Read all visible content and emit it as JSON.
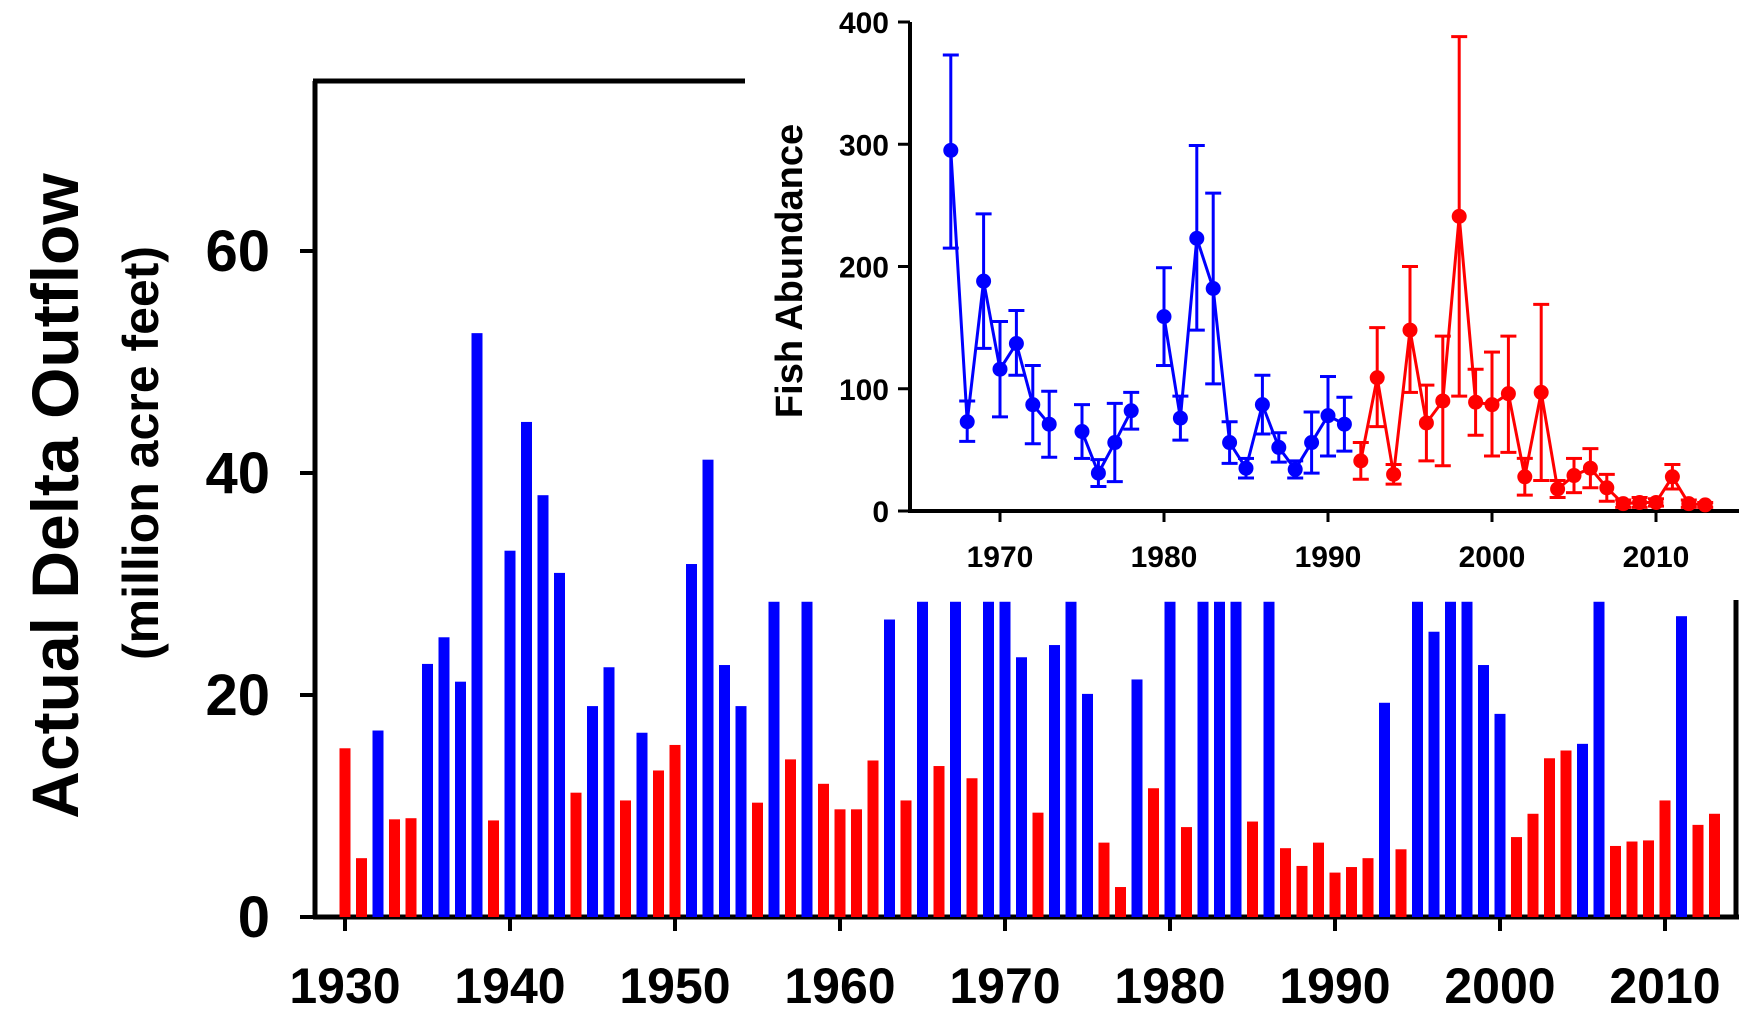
{
  "colors": {
    "wet": "#0000ff",
    "dry": "#ff0000",
    "axis": "#000000"
  },
  "chart_data": [
    {
      "type": "bar",
      "title": "",
      "ylabel": "Actual Delta Outflow",
      "ylabel_units": "(million acre feet)",
      "xlabel": "",
      "ylim": [
        0,
        60
      ],
      "y_ticks": [
        "0",
        "20",
        "40",
        "60"
      ],
      "x_ticks": [
        "1930",
        "1940",
        "1950",
        "1960",
        "1970",
        "1980",
        "1990",
        "2000",
        "2010"
      ],
      "note": "bars drawn in blue or red; several tall bars are cut off where the inset covers them",
      "bars": [
        {
          "x": 1930,
          "y": 15.2,
          "c": "dry"
        },
        {
          "x": 1931,
          "y": 5.3,
          "c": "dry"
        },
        {
          "x": 1932,
          "y": 16.8,
          "c": "wet"
        },
        {
          "x": 1933,
          "y": 8.8,
          "c": "dry"
        },
        {
          "x": 1934,
          "y": 8.9,
          "c": "dry"
        },
        {
          "x": 1935,
          "y": 22.8,
          "c": "wet"
        },
        {
          "x": 1936,
          "y": 25.2,
          "c": "wet"
        },
        {
          "x": 1937,
          "y": 21.2,
          "c": "wet"
        },
        {
          "x": 1938,
          "y": 52.6,
          "c": "wet"
        },
        {
          "x": 1939,
          "y": 8.7,
          "c": "dry"
        },
        {
          "x": 1940,
          "y": 33.0,
          "c": "wet"
        },
        {
          "x": 1941,
          "y": 44.6,
          "c": "wet"
        },
        {
          "x": 1942,
          "y": 38.0,
          "c": "wet"
        },
        {
          "x": 1943,
          "y": 31.0,
          "c": "wet"
        },
        {
          "x": 1944,
          "y": 11.2,
          "c": "dry"
        },
        {
          "x": 1945,
          "y": 19.0,
          "c": "wet"
        },
        {
          "x": 1946,
          "y": 22.5,
          "c": "wet"
        },
        {
          "x": 1947,
          "y": 10.5,
          "c": "dry"
        },
        {
          "x": 1948,
          "y": 16.6,
          "c": "wet"
        },
        {
          "x": 1949,
          "y": 13.2,
          "c": "dry"
        },
        {
          "x": 1950,
          "y": 15.5,
          "c": "dry"
        },
        {
          "x": 1951,
          "y": 31.8,
          "c": "wet"
        },
        {
          "x": 1952,
          "y": 41.2,
          "c": "wet"
        },
        {
          "x": 1953,
          "y": 22.7,
          "c": "wet"
        },
        {
          "x": 1954,
          "y": 19.0,
          "c": "wet"
        },
        {
          "x": 1955,
          "y": 10.3,
          "c": "dry"
        },
        {
          "x": 1956,
          "y": 28.4,
          "c": "wet"
        },
        {
          "x": 1957,
          "y": 14.2,
          "c": "dry"
        },
        {
          "x": 1958,
          "y": 28.4,
          "c": "wet"
        },
        {
          "x": 1959,
          "y": 12.0,
          "c": "dry"
        },
        {
          "x": 1960,
          "y": 9.7,
          "c": "dry"
        },
        {
          "x": 1961,
          "y": 9.7,
          "c": "dry"
        },
        {
          "x": 1962,
          "y": 14.1,
          "c": "dry"
        },
        {
          "x": 1963,
          "y": 26.8,
          "c": "wet"
        },
        {
          "x": 1964,
          "y": 10.5,
          "c": "dry"
        },
        {
          "x": 1965,
          "y": 28.4,
          "c": "wet"
        },
        {
          "x": 1966,
          "y": 13.6,
          "c": "dry"
        },
        {
          "x": 1967,
          "y": 28.4,
          "c": "wet"
        },
        {
          "x": 1968,
          "y": 12.5,
          "c": "dry"
        },
        {
          "x": 1969,
          "y": 28.4,
          "c": "wet"
        },
        {
          "x": 1970,
          "y": 28.4,
          "c": "wet"
        },
        {
          "x": 1971,
          "y": 23.4,
          "c": "wet"
        },
        {
          "x": 1972,
          "y": 9.4,
          "c": "dry"
        },
        {
          "x": 1973,
          "y": 24.5,
          "c": "wet"
        },
        {
          "x": 1974,
          "y": 28.4,
          "c": "wet"
        },
        {
          "x": 1975,
          "y": 20.1,
          "c": "wet"
        },
        {
          "x": 1976,
          "y": 6.7,
          "c": "dry"
        },
        {
          "x": 1977,
          "y": 2.7,
          "c": "dry"
        },
        {
          "x": 1978,
          "y": 21.4,
          "c": "wet"
        },
        {
          "x": 1979,
          "y": 11.6,
          "c": "dry"
        },
        {
          "x": 1980,
          "y": 28.4,
          "c": "wet"
        },
        {
          "x": 1981,
          "y": 8.1,
          "c": "dry"
        },
        {
          "x": 1982,
          "y": 28.4,
          "c": "wet"
        },
        {
          "x": 1983,
          "y": 28.4,
          "c": "wet"
        },
        {
          "x": 1984,
          "y": 28.4,
          "c": "wet"
        },
        {
          "x": 1985,
          "y": 8.6,
          "c": "dry"
        },
        {
          "x": 1986,
          "y": 28.4,
          "c": "wet"
        },
        {
          "x": 1987,
          "y": 6.2,
          "c": "dry"
        },
        {
          "x": 1988,
          "y": 4.6,
          "c": "dry"
        },
        {
          "x": 1989,
          "y": 6.7,
          "c": "dry"
        },
        {
          "x": 1990,
          "y": 4.0,
          "c": "dry"
        },
        {
          "x": 1991,
          "y": 4.5,
          "c": "dry"
        },
        {
          "x": 1992,
          "y": 5.3,
          "c": "dry"
        },
        {
          "x": 1993,
          "y": 19.3,
          "c": "wet"
        },
        {
          "x": 1994,
          "y": 6.1,
          "c": "dry"
        },
        {
          "x": 1995,
          "y": 28.4,
          "c": "wet"
        },
        {
          "x": 1996,
          "y": 25.7,
          "c": "wet"
        },
        {
          "x": 1997,
          "y": 28.4,
          "c": "wet"
        },
        {
          "x": 1998,
          "y": 28.4,
          "c": "wet"
        },
        {
          "x": 1999,
          "y": 22.7,
          "c": "wet"
        },
        {
          "x": 2000,
          "y": 18.3,
          "c": "wet"
        },
        {
          "x": 2001,
          "y": 7.2,
          "c": "dry"
        },
        {
          "x": 2002,
          "y": 9.3,
          "c": "dry"
        },
        {
          "x": 2003,
          "y": 14.3,
          "c": "dry"
        },
        {
          "x": 2004,
          "y": 15.0,
          "c": "dry"
        },
        {
          "x": 2005,
          "y": 15.6,
          "c": "wet"
        },
        {
          "x": 2006,
          "y": 28.4,
          "c": "wet"
        },
        {
          "x": 2007,
          "y": 6.4,
          "c": "dry"
        },
        {
          "x": 2008,
          "y": 6.8,
          "c": "dry"
        },
        {
          "x": 2009,
          "y": 6.9,
          "c": "dry"
        },
        {
          "x": 2010,
          "y": 10.5,
          "c": "dry"
        },
        {
          "x": 2011,
          "y": 27.1,
          "c": "wet"
        },
        {
          "x": 2012,
          "y": 8.3,
          "c": "dry"
        },
        {
          "x": 2013,
          "y": 9.3,
          "c": "dry"
        }
      ]
    },
    {
      "type": "line",
      "title": "",
      "ylabel": "Fish Abundance",
      "xlabel": "",
      "ylim": [
        0,
        400
      ],
      "y_ticks": [
        "0",
        "100",
        "200",
        "300",
        "400"
      ],
      "x_ticks": [
        "1970",
        "1980",
        "1990",
        "2000",
        "2010"
      ],
      "note": "points with error bars, connected by lines; gaps where years are missing",
      "segments": [
        {
          "c": "wet",
          "points": [
            {
              "x": 1967,
              "y": 295,
              "lo": 215,
              "hi": 373
            },
            {
              "x": 1968,
              "y": 73,
              "lo": 57,
              "hi": 90
            },
            {
              "x": 1969,
              "y": 188,
              "lo": 133,
              "hi": 243
            },
            {
              "x": 1970,
              "y": 116,
              "lo": 77,
              "hi": 155
            },
            {
              "x": 1971,
              "y": 137,
              "lo": 111,
              "hi": 164
            },
            {
              "x": 1972,
              "y": 87,
              "lo": 55,
              "hi": 119
            },
            {
              "x": 1973,
              "y": 71,
              "lo": 44,
              "hi": 98
            }
          ]
        },
        {
          "c": "wet",
          "points": [
            {
              "x": 1975,
              "y": 65,
              "lo": 43,
              "hi": 87
            },
            {
              "x": 1976,
              "y": 31,
              "lo": 20,
              "hi": 42
            },
            {
              "x": 1977,
              "y": 56,
              "lo": 24,
              "hi": 88
            },
            {
              "x": 1978,
              "y": 82,
              "lo": 67,
              "hi": 97
            }
          ]
        },
        {
          "c": "wet",
          "points": [
            {
              "x": 1980,
              "y": 159,
              "lo": 119,
              "hi": 199
            },
            {
              "x": 1981,
              "y": 76,
              "lo": 58,
              "hi": 94
            },
            {
              "x": 1982,
              "y": 223,
              "lo": 148,
              "hi": 299
            },
            {
              "x": 1983,
              "y": 182,
              "lo": 104,
              "hi": 260
            },
            {
              "x": 1984,
              "y": 56,
              "lo": 39,
              "hi": 73
            },
            {
              "x": 1985,
              "y": 35,
              "lo": 27,
              "hi": 43
            },
            {
              "x": 1986,
              "y": 87,
              "lo": 63,
              "hi": 111
            },
            {
              "x": 1987,
              "y": 52,
              "lo": 40,
              "hi": 64
            },
            {
              "x": 1988,
              "y": 34,
              "lo": 27,
              "hi": 41
            },
            {
              "x": 1989,
              "y": 56,
              "lo": 31,
              "hi": 81
            },
            {
              "x": 1990,
              "y": 78,
              "lo": 45,
              "hi": 110
            },
            {
              "x": 1991,
              "y": 71,
              "lo": 49,
              "hi": 93
            }
          ]
        },
        {
          "c": "dry",
          "points": [
            {
              "x": 1992,
              "y": 41,
              "lo": 26,
              "hi": 56
            },
            {
              "x": 1993,
              "y": 109,
              "lo": 69,
              "hi": 150
            },
            {
              "x": 1994,
              "y": 30,
              "lo": 22,
              "hi": 38
            },
            {
              "x": 1995,
              "y": 148,
              "lo": 97,
              "hi": 200
            },
            {
              "x": 1996,
              "y": 72,
              "lo": 41,
              "hi": 103
            },
            {
              "x": 1997,
              "y": 90,
              "lo": 37,
              "hi": 143
            },
            {
              "x": 1998,
              "y": 241,
              "lo": 94,
              "hi": 388
            },
            {
              "x": 1999,
              "y": 89,
              "lo": 62,
              "hi": 116
            },
            {
              "x": 2000,
              "y": 87,
              "lo": 45,
              "hi": 130
            },
            {
              "x": 2001,
              "y": 96,
              "lo": 48,
              "hi": 143
            },
            {
              "x": 2002,
              "y": 28,
              "lo": 13,
              "hi": 43
            },
            {
              "x": 2003,
              "y": 97,
              "lo": 25,
              "hi": 169
            },
            {
              "x": 2004,
              "y": 18,
              "lo": 11,
              "hi": 25
            },
            {
              "x": 2005,
              "y": 29,
              "lo": 15,
              "hi": 43
            },
            {
              "x": 2006,
              "y": 35,
              "lo": 19,
              "hi": 51
            },
            {
              "x": 2007,
              "y": 19,
              "lo": 8,
              "hi": 30
            },
            {
              "x": 2008,
              "y": 6,
              "lo": 3,
              "hi": 9
            },
            {
              "x": 2009,
              "y": 7,
              "lo": 3,
              "hi": 11
            },
            {
              "x": 2010,
              "y": 7,
              "lo": 4,
              "hi": 10
            },
            {
              "x": 2011,
              "y": 28,
              "lo": 18,
              "hi": 38
            },
            {
              "x": 2012,
              "y": 6,
              "lo": 3,
              "hi": 9
            },
            {
              "x": 2013,
              "y": 5,
              "lo": 3,
              "hi": 7
            }
          ]
        }
      ]
    }
  ]
}
